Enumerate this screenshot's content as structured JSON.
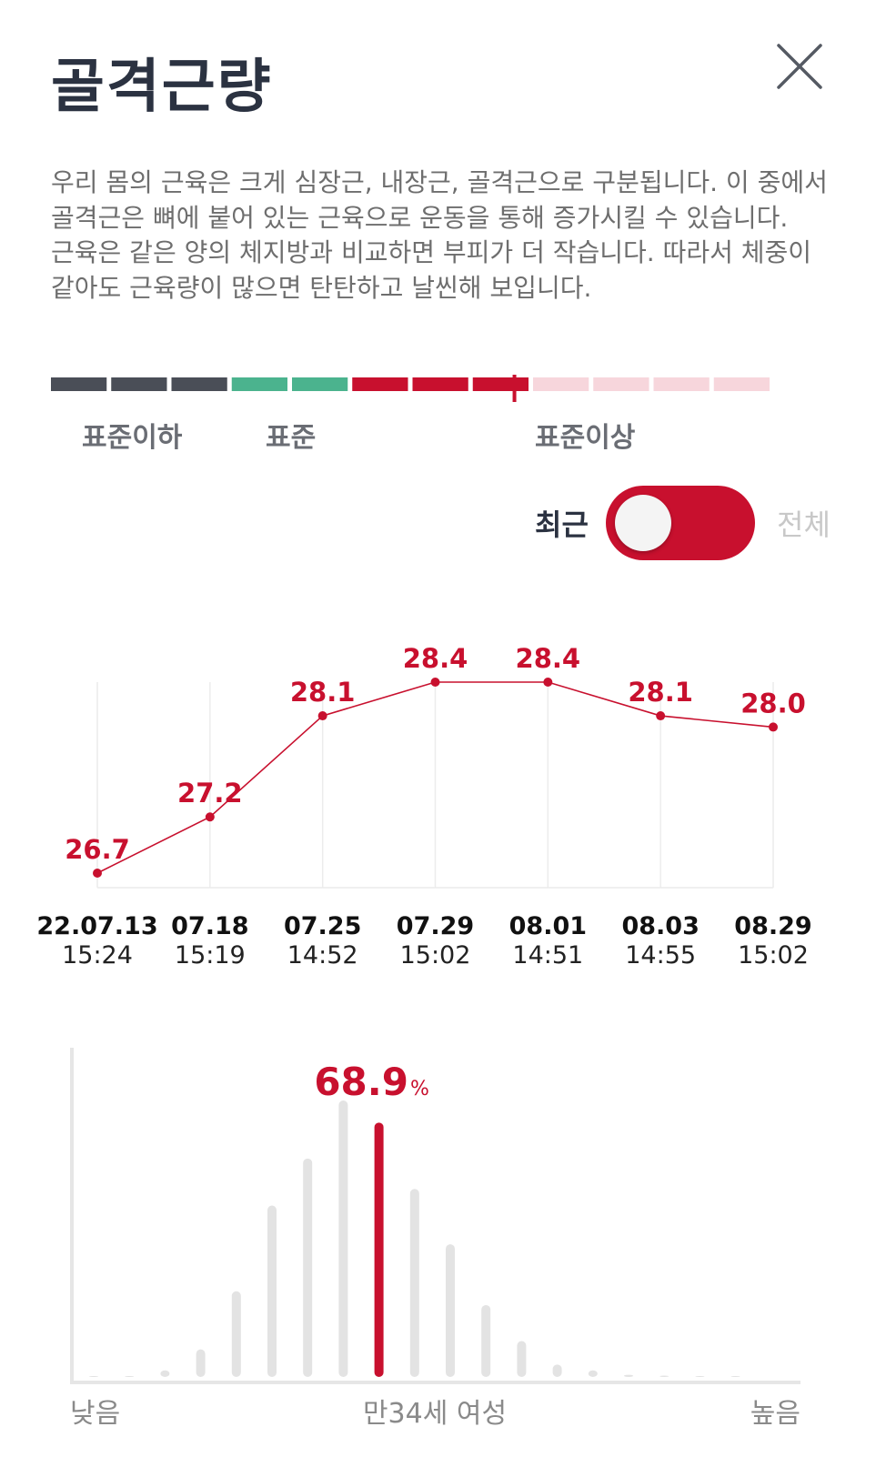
{
  "header": {
    "title": "골격근량"
  },
  "description": "우리 몸의 근육은 크게 심장근, 내장근, 골격근으로 구분됩니다. 이 중에서 골격근은 뼈에 붙어 있는 근육으로 운동을 통해 증가시킬 수 있습니다. 근육은 같은 양의 체지방과 비교하면 부피가 더 작습니다. 따라서 체중이 같아도 근육량이 많으면 탄탄하고 날씬해 보입니다.",
  "scale": {
    "labels": [
      "표준이하",
      "표준",
      "표준이상"
    ],
    "segment_colors": [
      "#4a4e57",
      "#4a4e57",
      "#4a4e57",
      "#4bb38e",
      "#4bb38e",
      "#c8102e",
      "#c8102e",
      "#c8102e",
      "#f7d6dc",
      "#f7d6dc",
      "#f7d6dc",
      "#f7d6dc"
    ],
    "marker_fraction": 0.645
  },
  "toggle": {
    "left_label": "최근",
    "right_label": "전체",
    "state": "recent"
  },
  "colors": {
    "accent": "#c8102e",
    "dark": "#2b3241",
    "green": "#4bb38e",
    "light_pink": "#f7d6dc",
    "grey_bar": "#e3e3e3"
  },
  "chart_data": [
    {
      "type": "line",
      "x": [
        "22.07.13 15:24",
        "07.18 15:19",
        "07.25 14:52",
        "07.29 15:02",
        "08.01 14:51",
        "08.03 14:55",
        "08.29 15:02"
      ],
      "dates": [
        "22.07.13",
        "07.18",
        "07.25",
        "07.29",
        "08.01",
        "08.03",
        "08.29"
      ],
      "times": [
        "15:24",
        "15:19",
        "14:52",
        "15:02",
        "14:51",
        "14:55",
        "15:02"
      ],
      "values": [
        26.7,
        27.2,
        28.1,
        28.4,
        28.4,
        28.1,
        28.0
      ],
      "value_labels": [
        "26.7",
        "27.2",
        "28.1",
        "28.4",
        "28.4",
        "28.1",
        "28.0"
      ],
      "ylim": [
        26.7,
        28.4
      ],
      "grid": "vertical"
    },
    {
      "type": "bar",
      "highlight_label": "68.9",
      "highlight_unit": "%",
      "highlight_index": 8,
      "values": [
        0.2,
        0.3,
        2.4,
        10,
        31,
        62,
        79,
        100,
        92,
        68,
        48,
        26,
        13,
        4.5,
        2.4,
        0.8,
        0.5,
        0.3,
        0.2
      ],
      "x_left_label": "낮음",
      "x_center_label": "만34세 여성",
      "x_right_label": "높음"
    }
  ]
}
